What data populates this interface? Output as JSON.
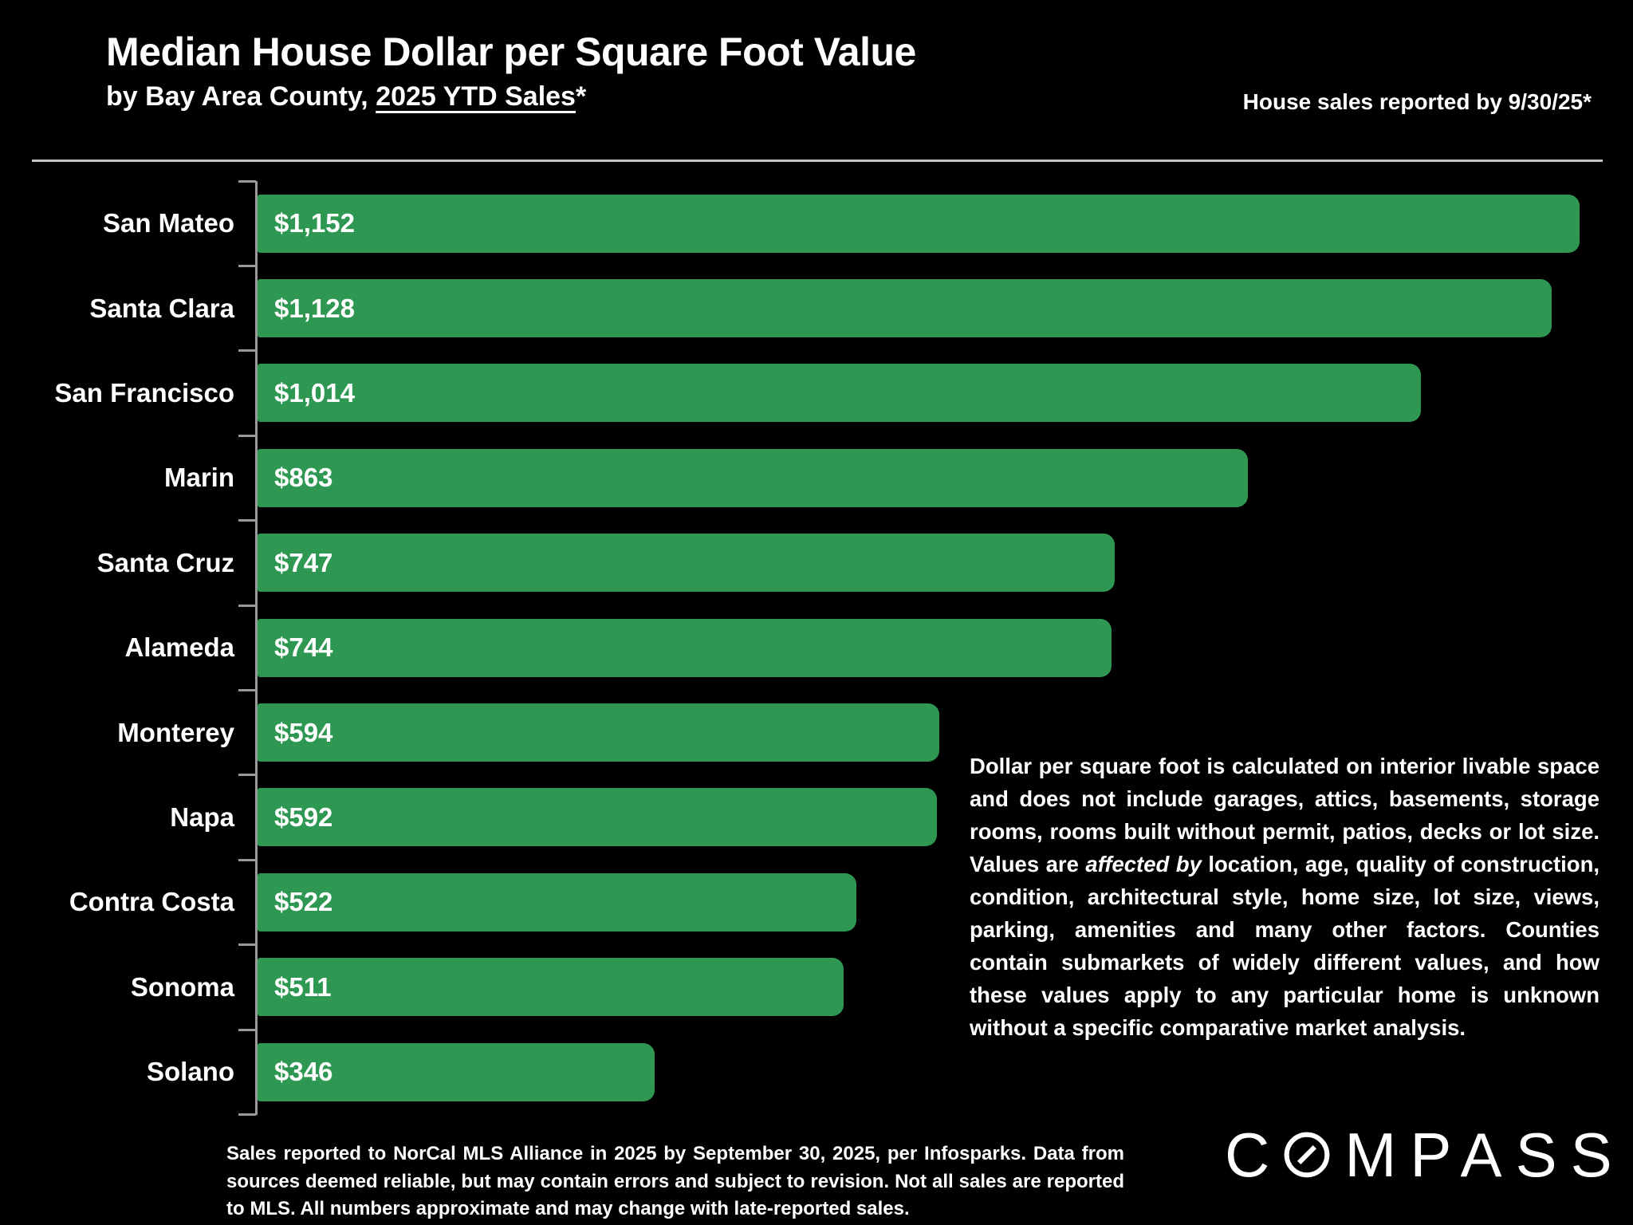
{
  "header": {
    "title": "Median House Dollar per Square Foot Value",
    "subtitle_prefix": "by Bay Area County, ",
    "subtitle_underlined": "2025 YTD Sales",
    "subtitle_suffix": "*",
    "report_note": "House sales reported by 9/30/25*"
  },
  "chart_data": {
    "type": "bar",
    "orientation": "horizontal",
    "title": "Median House Dollar per Square Foot Value",
    "subtitle": "by Bay Area County, 2025 YTD Sales*",
    "categories": [
      "San Mateo",
      "Santa Clara",
      "San Francisco",
      "Marin",
      "Santa Cruz",
      "Alameda",
      "Monterey",
      "Napa",
      "Contra Costa",
      "Sonoma",
      "Solano"
    ],
    "values": [
      1152,
      1128,
      1014,
      863,
      747,
      744,
      594,
      592,
      522,
      511,
      346
    ],
    "value_labels": [
      "$1,152",
      "$1,128",
      "$1,014",
      "$863",
      "$747",
      "$744",
      "$594",
      "$592",
      "$522",
      "$511",
      "$346"
    ],
    "xlabel": "",
    "ylabel": "",
    "xlim": [
      0,
      1160
    ],
    "grid": false,
    "legend": "none",
    "value_label_position": "inside-start",
    "bar_color": "#2E9852"
  },
  "side_note": {
    "part1": "Dollar per square foot is calculated on interior livable space and does not include garages, attics, basements, storage rooms, rooms built without permit, patios, decks or lot size. Values are ",
    "emphasis": "affected by",
    "part2": " location, age, quality of construction, condition, architectural style, home size, lot size, views, parking, amenities and many other factors. Counties contain submarkets of widely different values, and how these values apply to any particular home is unknown without a specific comparative market analysis."
  },
  "footnote": "Sales reported to NorCal MLS Alliance in 2025 by September 30, 2025, per Infosparks. Data from sources deemed reliable, but may contain errors and subject to revision. Not all sales are reported to MLS. All numbers approximate and may change with late-reported sales.",
  "logo": {
    "text": "COMPASS",
    "prefix": "C",
    "suffix": "MPASS"
  },
  "colors": {
    "bar_green": "#2E9852",
    "background": "#000000",
    "axis_line": "#9a9a9a",
    "divider_line": "#c4c4c4",
    "text": "#ffffff"
  }
}
